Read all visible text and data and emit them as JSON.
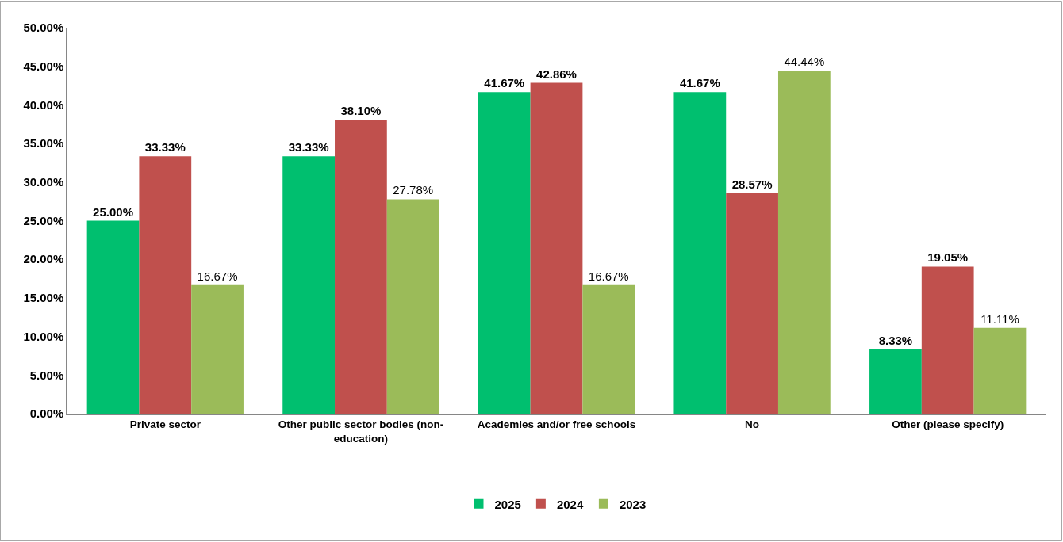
{
  "chart_data": {
    "type": "bar",
    "categories": [
      "Private sector",
      "Other public sector bodies (non-education)",
      "Academies and/or free schools",
      "No",
      "Other (please specify)"
    ],
    "series": [
      {
        "name": "2025",
        "color": "#00bf6f",
        "values": [
          25.0,
          33.33,
          41.67,
          41.67,
          8.33
        ],
        "value_labels": [
          "25.00%",
          "33.33%",
          "41.67%",
          "41.67%",
          "8.33%"
        ]
      },
      {
        "name": "2024",
        "color": "#c0504d",
        "values": [
          33.33,
          38.1,
          42.86,
          28.57,
          19.05
        ],
        "value_labels": [
          "33.33%",
          "38.10%",
          "42.86%",
          "28.57%",
          "19.05%"
        ]
      },
      {
        "name": "2023",
        "color": "#9bbb59",
        "values": [
          16.67,
          27.78,
          16.67,
          44.44,
          11.11
        ],
        "value_labels": [
          "16.67%",
          "27.78%",
          "16.67%",
          "44.44%",
          "11.11%"
        ]
      }
    ],
    "ylim": [
      0,
      50
    ],
    "yticks": [
      {
        "value": 0,
        "label": "0.00%"
      },
      {
        "value": 5,
        "label": "5.00%"
      },
      {
        "value": 10,
        "label": "10.00%"
      },
      {
        "value": 15,
        "label": "15.00%"
      },
      {
        "value": 20,
        "label": "20.00%"
      },
      {
        "value": 25,
        "label": "25.00%"
      },
      {
        "value": 30,
        "label": "30.00%"
      },
      {
        "value": 35,
        "label": "35.00%"
      },
      {
        "value": 40,
        "label": "40.00%"
      },
      {
        "value": 45,
        "label": "45.00%"
      },
      {
        "value": 50,
        "label": "50.00%"
      }
    ],
    "grid": false,
    "legend": "bottom"
  }
}
